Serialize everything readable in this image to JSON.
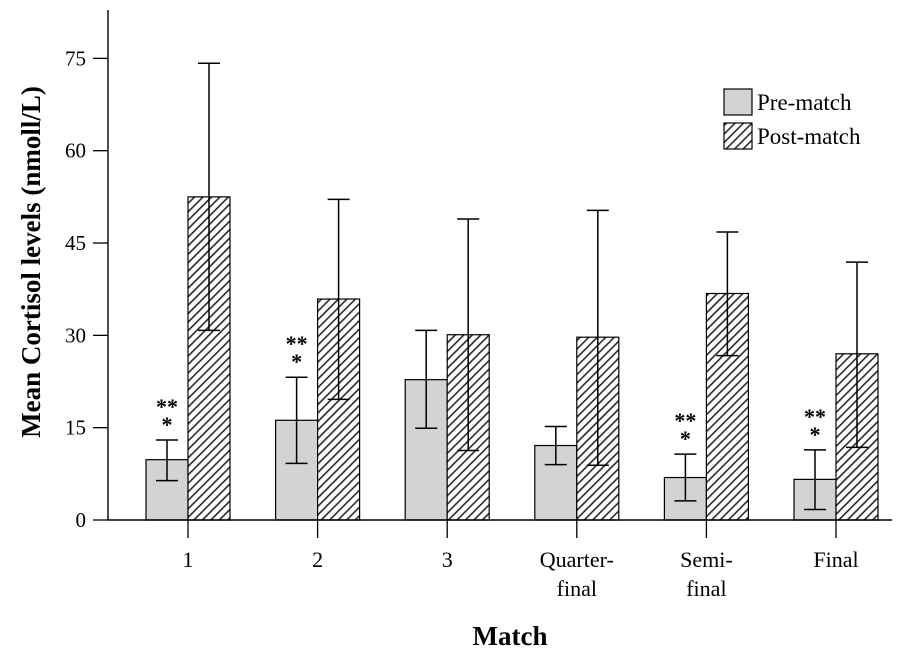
{
  "chart_data": {
    "type": "bar",
    "xlabel": "Match",
    "ylabel": "Mean Cortisol levels (nmoll/L)",
    "ylim": [
      0,
      82
    ],
    "yticks": [
      "0",
      "15",
      "30",
      "45",
      "60",
      "75"
    ],
    "categories": [
      [
        "1"
      ],
      [
        "2"
      ],
      [
        "3"
      ],
      [
        "Quarter-",
        "final"
      ],
      [
        "Semi-",
        "final"
      ],
      [
        "Final"
      ]
    ],
    "series": [
      {
        "name": "Pre-match",
        "fill": "#d3d3d3",
        "pattern": "solid",
        "values": [
          9.8,
          16.2,
          22.8,
          12.1,
          6.9,
          6.6
        ],
        "error_low": [
          6.4,
          9.2,
          14.9,
          9.0,
          3.1,
          1.7
        ],
        "error_high": [
          13.0,
          23.2,
          30.8,
          15.2,
          10.7,
          11.4
        ]
      },
      {
        "name": "Post-match",
        "fill": "#d3d3d3",
        "pattern": "hatched",
        "values": [
          52.5,
          35.9,
          30.1,
          29.7,
          36.8,
          27.0
        ],
        "error_low": [
          30.8,
          19.6,
          11.3,
          8.9,
          26.7,
          11.8
        ],
        "error_high": [
          74.2,
          52.1,
          48.9,
          50.3,
          46.8,
          41.9
        ]
      }
    ],
    "annotations": [
      {
        "category": 0,
        "lines": [
          "**",
          "*"
        ]
      },
      {
        "category": 1,
        "lines": [
          "**",
          "*"
        ]
      },
      {
        "category": 4,
        "lines": [
          "**",
          "*"
        ]
      },
      {
        "category": 5,
        "lines": [
          "**",
          "*"
        ]
      }
    ],
    "legend": {
      "position": "top-right",
      "items": [
        "Pre-match",
        "Post-match"
      ]
    },
    "grid": false
  }
}
